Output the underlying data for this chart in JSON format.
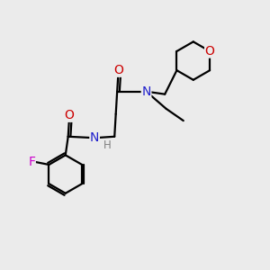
{
  "bg_color": "#ebebeb",
  "atom_colors": {
    "C": "#000000",
    "N": "#2020cc",
    "O": "#cc0000",
    "F": "#cc00cc",
    "H": "#808080"
  },
  "bond_color": "#000000",
  "line_width": 1.6,
  "font_size_atom": 10,
  "font_size_H": 8.5
}
